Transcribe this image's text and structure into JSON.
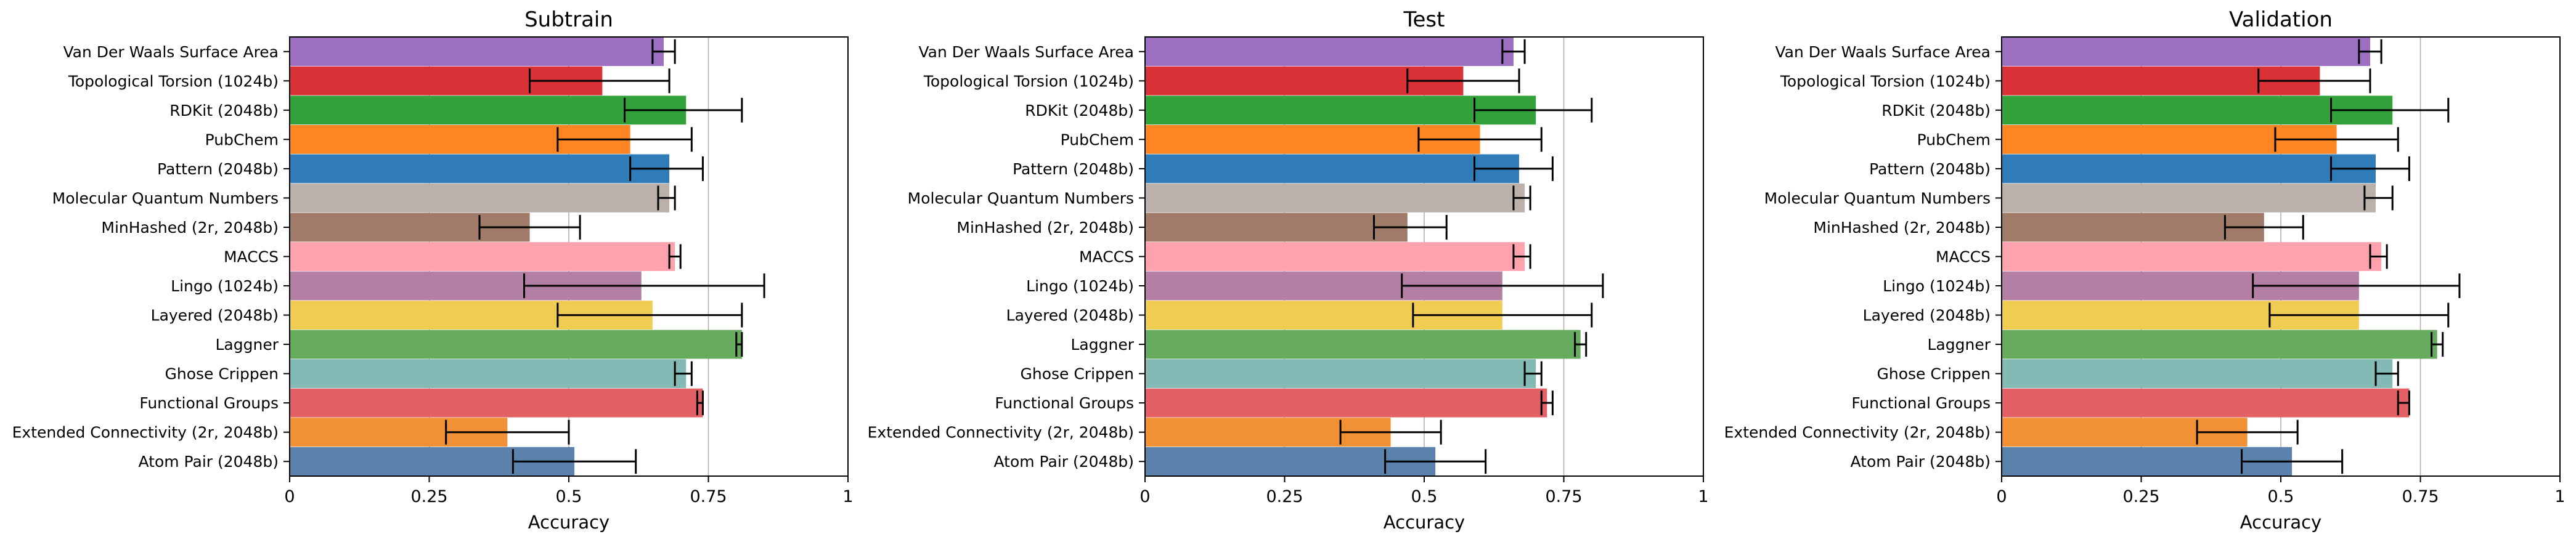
{
  "chart_data": [
    {
      "type": "bar",
      "orientation": "horizontal",
      "title": "Subtrain",
      "xlabel": "Accuracy",
      "ylabel": "",
      "xlim": [
        0,
        1
      ],
      "xticks": [
        "0",
        "0.25",
        "0.5",
        "0.75",
        "1"
      ],
      "grid": "vertical",
      "categories": [
        "Van Der Waals Surface Area",
        "Topological Torsion (1024b)",
        "RDKit (2048b)",
        "PubChem",
        "Pattern (2048b)",
        "Molecular Quantum Numbers",
        "MinHashed (2r, 2048b)",
        "MACCS",
        "Lingo (1024b)",
        "Layered (2048b)",
        "Laggner",
        "Ghose Crippen",
        "Functional Groups",
        "Extended Connectivity (2r, 2048b)",
        "Atom Pair (2048b)"
      ],
      "values": [
        0.67,
        0.56,
        0.71,
        0.61,
        0.68,
        0.68,
        0.43,
        0.69,
        0.63,
        0.65,
        0.81,
        0.71,
        0.74,
        0.39,
        0.51
      ],
      "error_low": [
        0.65,
        0.43,
        0.6,
        0.48,
        0.61,
        0.66,
        0.34,
        0.68,
        0.42,
        0.48,
        0.8,
        0.69,
        0.73,
        0.28,
        0.4
      ],
      "error_high": [
        0.69,
        0.68,
        0.81,
        0.72,
        0.74,
        0.69,
        0.52,
        0.7,
        0.85,
        0.81,
        0.81,
        0.72,
        0.74,
        0.5,
        0.62
      ]
    },
    {
      "type": "bar",
      "orientation": "horizontal",
      "title": "Test",
      "xlabel": "Accuracy",
      "ylabel": "",
      "xlim": [
        0,
        1
      ],
      "xticks": [
        "0",
        "0.25",
        "0.5",
        "0.75",
        "1"
      ],
      "grid": "vertical",
      "categories": [
        "Van Der Waals Surface Area",
        "Topological Torsion (1024b)",
        "RDKit (2048b)",
        "PubChem",
        "Pattern (2048b)",
        "Molecular Quantum Numbers",
        "MinHashed (2r, 2048b)",
        "MACCS",
        "Lingo (1024b)",
        "Layered (2048b)",
        "Laggner",
        "Ghose Crippen",
        "Functional Groups",
        "Extended Connectivity (2r, 2048b)",
        "Atom Pair (2048b)"
      ],
      "values": [
        0.66,
        0.57,
        0.7,
        0.6,
        0.67,
        0.68,
        0.47,
        0.68,
        0.64,
        0.64,
        0.78,
        0.7,
        0.72,
        0.44,
        0.52
      ],
      "error_low": [
        0.64,
        0.47,
        0.59,
        0.49,
        0.59,
        0.66,
        0.41,
        0.66,
        0.46,
        0.48,
        0.77,
        0.68,
        0.71,
        0.35,
        0.43
      ],
      "error_high": [
        0.68,
        0.67,
        0.8,
        0.71,
        0.73,
        0.69,
        0.54,
        0.69,
        0.82,
        0.8,
        0.79,
        0.71,
        0.73,
        0.53,
        0.61
      ]
    },
    {
      "type": "bar",
      "orientation": "horizontal",
      "title": "Validation",
      "xlabel": "Accuracy",
      "ylabel": "",
      "xlim": [
        0,
        1
      ],
      "xticks": [
        "0",
        "0.25",
        "0.5",
        "0.75",
        "1"
      ],
      "grid": "vertical",
      "categories": [
        "Van Der Waals Surface Area",
        "Topological Torsion (1024b)",
        "RDKit (2048b)",
        "PubChem",
        "Pattern (2048b)",
        "Molecular Quantum Numbers",
        "MinHashed (2r, 2048b)",
        "MACCS",
        "Lingo (1024b)",
        "Layered (2048b)",
        "Laggner",
        "Ghose Crippen",
        "Functional Groups",
        "Extended Connectivity (2r, 2048b)",
        "Atom Pair (2048b)"
      ],
      "values": [
        0.66,
        0.57,
        0.7,
        0.6,
        0.67,
        0.67,
        0.47,
        0.68,
        0.64,
        0.64,
        0.78,
        0.7,
        0.73,
        0.44,
        0.52
      ],
      "error_low": [
        0.64,
        0.46,
        0.59,
        0.49,
        0.59,
        0.65,
        0.4,
        0.66,
        0.45,
        0.48,
        0.77,
        0.67,
        0.71,
        0.35,
        0.43
      ],
      "error_high": [
        0.68,
        0.66,
        0.8,
        0.71,
        0.73,
        0.7,
        0.54,
        0.69,
        0.82,
        0.8,
        0.79,
        0.71,
        0.73,
        0.53,
        0.61
      ]
    }
  ],
  "colors": {
    "Van Der Waals Surface Area": "#9c6fc0",
    "Topological Torsion (1024b)": "#d93236",
    "RDKit (2048b)": "#34a23a",
    "PubChem": "#fd8622",
    "Pattern (2048b)": "#2f7cb9",
    "Molecular Quantum Numbers": "#bcb0ab",
    "MinHashed (2r, 2048b)": "#a07b69",
    "MACCS": "#fea3ae",
    "Lingo (1024b)": "#b37fa5",
    "Layered (2048b)": "#f0cc52",
    "Laggner": "#67ab5f",
    "Ghose Crippen": "#84bab6",
    "Functional Groups": "#e36065",
    "Extended Connectivity (2r, 2048b)": "#f29035",
    "Atom Pair (2048b)": "#5a82ab"
  }
}
